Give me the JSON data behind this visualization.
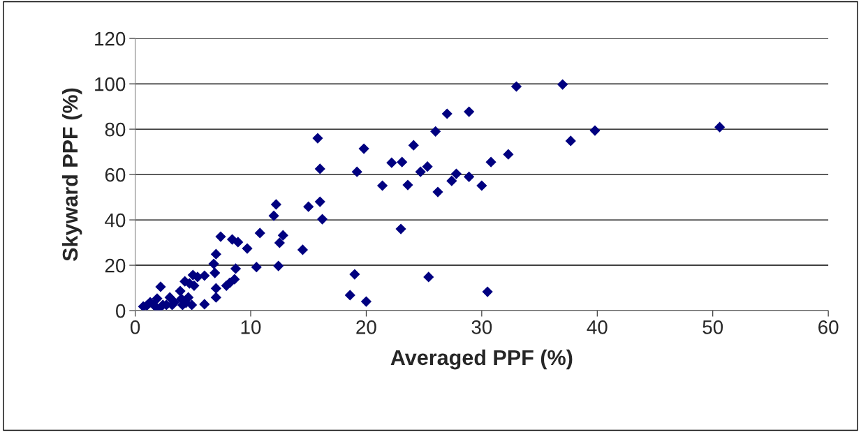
{
  "chart_data": {
    "type": "scatter",
    "xlabel": "Averaged PPF (%)",
    "ylabel": "Skyward PPF (%)",
    "xlim": [
      0,
      60
    ],
    "ylim": [
      0,
      120
    ],
    "xticks": [
      0,
      10,
      20,
      30,
      40,
      50,
      60
    ],
    "yticks": [
      0,
      20,
      40,
      60,
      80,
      100,
      120
    ],
    "grid": "y",
    "marker": "diamond",
    "legend": false,
    "series": [
      {
        "color": "#000080",
        "x": [
          0.7,
          1.0,
          1.3,
          1.6,
          2.0,
          1.9,
          2.2,
          2.4,
          2.7,
          3.0,
          3.4,
          3.2,
          3.9,
          4.1,
          4.0,
          4.3,
          4.4,
          4.6,
          4.7,
          4.9,
          5.0,
          5.1,
          5.4,
          6.0,
          6.0,
          6.8,
          7.0,
          6.9,
          7.0,
          7.0,
          7.4,
          7.9,
          8.2,
          8.4,
          8.6,
          8.7,
          8.9,
          9.7,
          10.5,
          10.8,
          12.0,
          12.2,
          12.5,
          12.4,
          12.8,
          14.5,
          15.0,
          15.8,
          16.0,
          16.0,
          16.2,
          18.6,
          19.0,
          19.2,
          19.8,
          20.0,
          21.4,
          22.2,
          23.1,
          23.0,
          23.6,
          24.1,
          24.7,
          25.3,
          25.4,
          26.0,
          26.2,
          27.0,
          27.4,
          27.8,
          28.9,
          28.9,
          30.0,
          30.5,
          30.8,
          32.3,
          33.0,
          37.0,
          37.7,
          39.8,
          50.6
        ],
        "values": [
          1.8,
          2.2,
          3.7,
          2.5,
          0.6,
          5.3,
          10.5,
          2.5,
          2.5,
          5.8,
          3.7,
          2.5,
          8.6,
          2.5,
          5.2,
          12.9,
          3.4,
          5.8,
          12.0,
          2.5,
          15.7,
          11.0,
          14.8,
          2.8,
          15.4,
          20.6,
          24.9,
          16.6,
          9.8,
          5.8,
          32.6,
          11.0,
          12.3,
          31.4,
          13.8,
          18.5,
          30.2,
          27.4,
          19.2,
          34.2,
          41.8,
          46.8,
          29.9,
          19.7,
          33.2,
          26.8,
          45.8,
          76,
          62.5,
          48,
          40.3,
          6.8,
          16,
          61.2,
          71.4,
          4.0,
          55.1,
          65.2,
          65.5,
          36,
          55.4,
          72.9,
          61.2,
          63.5,
          14.8,
          79,
          52.3,
          86.8,
          57.2,
          60.3,
          87.7,
          59,
          55.1,
          8.3,
          65.5,
          68.9,
          98.8,
          99.7,
          74.8,
          79.4,
          80.9
        ]
      }
    ]
  }
}
